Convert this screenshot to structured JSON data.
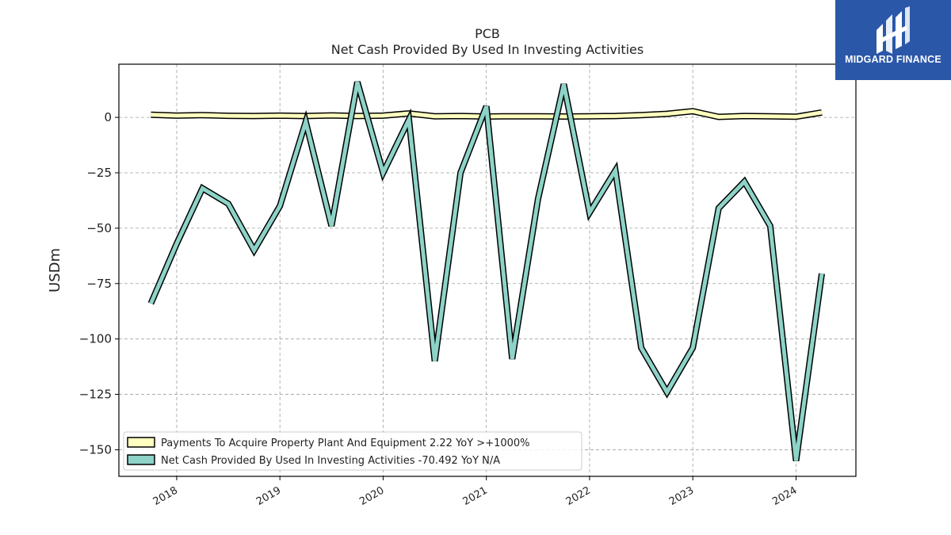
{
  "chart_data": {
    "type": "line",
    "title": "PCB",
    "subtitle": "Net Cash Provided By Used In Investing Activities",
    "ylabel": "USDm",
    "xlabel": "",
    "ylim": [
      -162,
      24
    ],
    "xlim": [
      2017.44,
      2024.58
    ],
    "yticks": [
      0,
      -25,
      -50,
      -75,
      -100,
      -125,
      -150
    ],
    "xticks": [
      2018,
      2019,
      2020,
      2021,
      2022,
      2023,
      2024
    ],
    "grid": true,
    "legend_position": "lower-left",
    "x": [
      2017.75,
      2018.0,
      2018.25,
      2018.5,
      2018.75,
      2019.0,
      2019.25,
      2019.5,
      2019.75,
      2020.0,
      2020.25,
      2020.5,
      2020.75,
      2021.0,
      2021.25,
      2021.5,
      2021.75,
      2022.0,
      2022.25,
      2022.5,
      2022.75,
      2023.0,
      2023.25,
      2023.5,
      2023.75,
      2024.0,
      2024.25
    ],
    "series": [
      {
        "name": "Payments To Acquire Property Plant And Equipment",
        "legend_label": "Payments To Acquire Property Plant And Equipment  2.22 YoY >+1000%",
        "color": "#ffffbf",
        "values": [
          1.2,
          0.8,
          1.0,
          0.7,
          0.6,
          0.8,
          0.6,
          0.9,
          0.6,
          0.8,
          1.8,
          0.5,
          0.6,
          0.4,
          0.5,
          0.5,
          0.4,
          0.5,
          0.6,
          1.0,
          1.6,
          2.8,
          0.2,
          0.6,
          0.5,
          0.3,
          2.2
        ]
      },
      {
        "name": "Net Cash Provided By Used In Investing Activities",
        "legend_label": "Net Cash Provided By Used In Investing Activities  -70.492 YoY N/A",
        "color": "#8dd3c7",
        "values": [
          -84,
          -57,
          -32,
          -39,
          -60,
          -40,
          -2,
          -49,
          16,
          -25,
          -1,
          -110,
          -25,
          5,
          -109,
          -37,
          15,
          -43,
          -24,
          -104,
          -124,
          -104,
          -41,
          -29,
          -49,
          -155,
          -70.5
        ]
      }
    ]
  },
  "logo": {
    "text": "MIDGARD FINANCE",
    "icon": "midgard-logo-icon",
    "background": "#2b57a8"
  }
}
